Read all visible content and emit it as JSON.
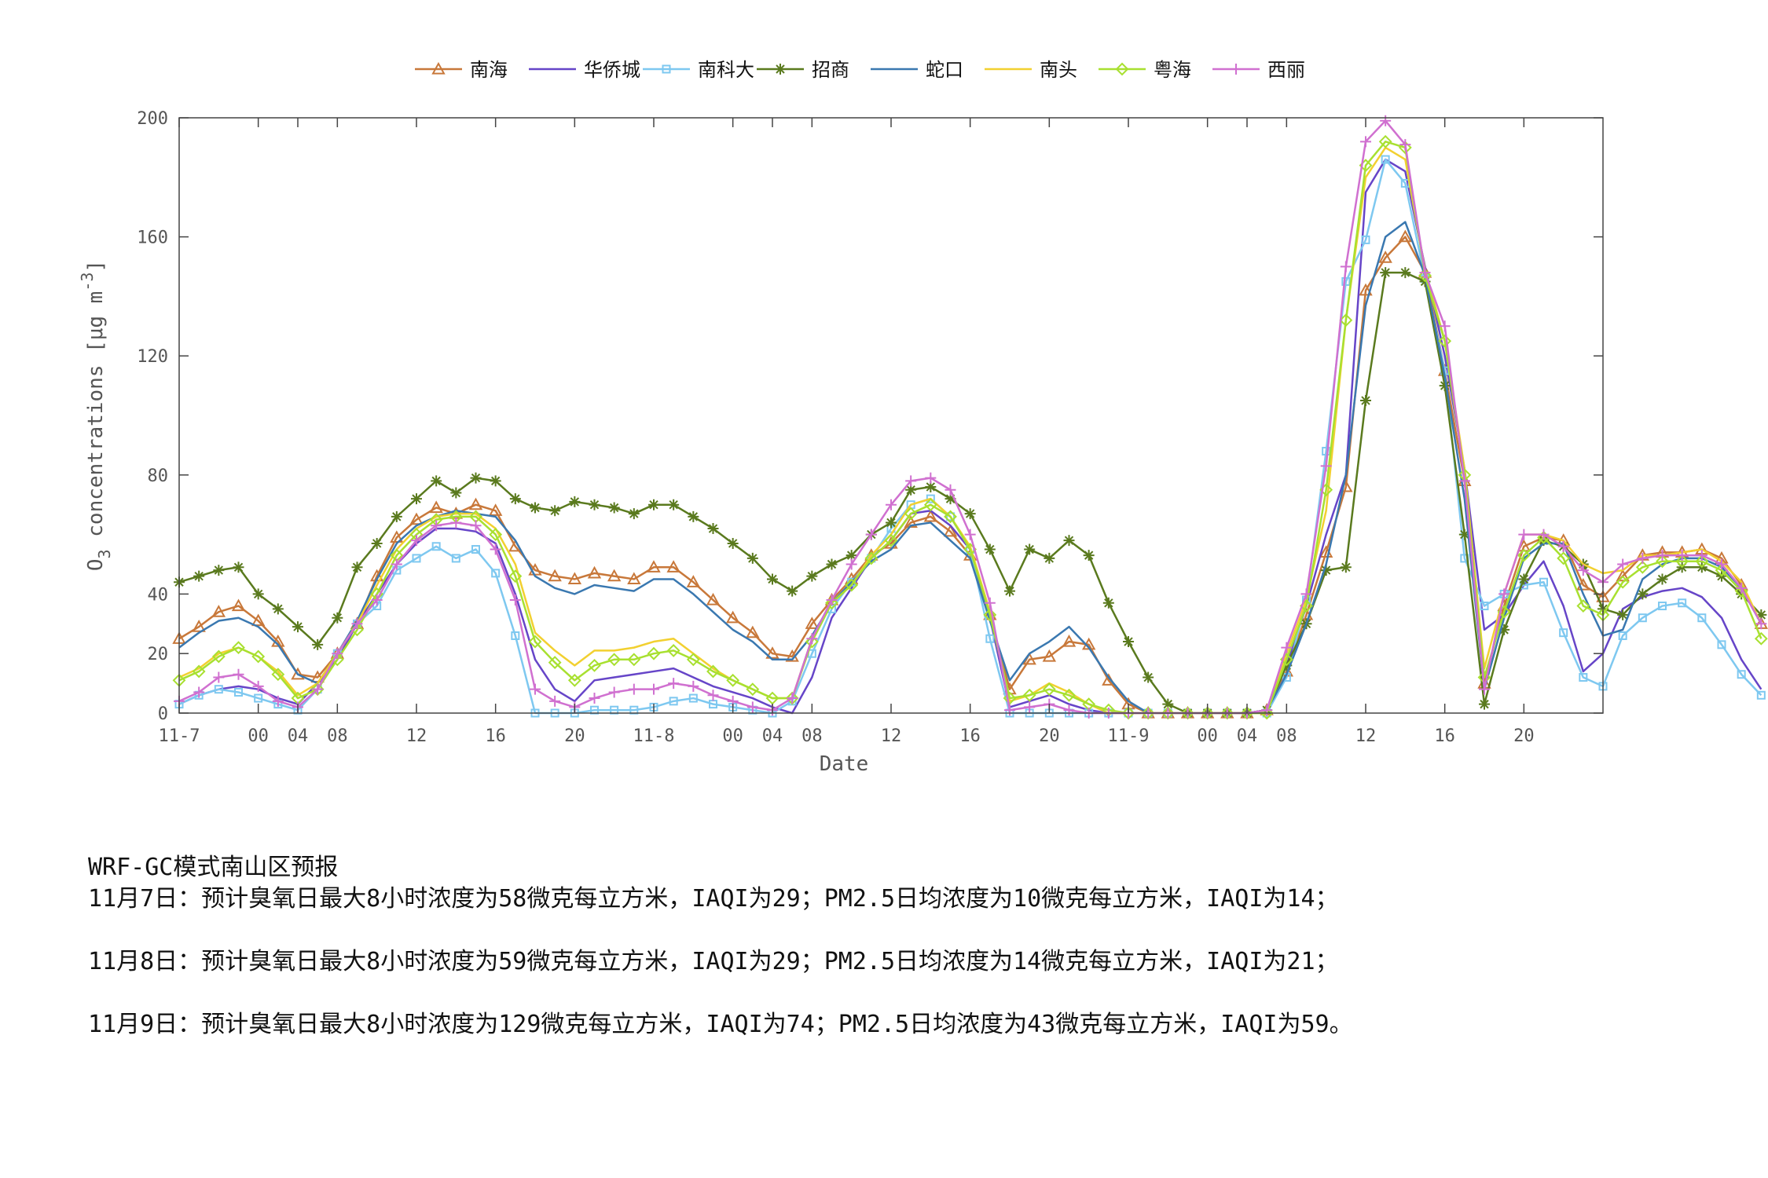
{
  "chart_data": {
    "type": "line",
    "xlabel": "Date",
    "ylabel_main": "O",
    "ylabel_sub": "3",
    "ylabel_units": "concentrations [μg m",
    "ylabel_sup": "-3",
    "ylabel_close": "]",
    "ylim": [
      0,
      200
    ],
    "xlim": [
      0,
      72
    ],
    "y_ticks": [
      0,
      20,
      40,
      80,
      120,
      160,
      200
    ],
    "x_ticks": [
      {
        "x": 0,
        "label": "11-7"
      },
      {
        "x": 4,
        "label": "00"
      },
      {
        "x": 6,
        "label": "04"
      },
      {
        "x": 8,
        "label": "08"
      },
      {
        "x": 12,
        "label": "12"
      },
      {
        "x": 16,
        "label": "16"
      },
      {
        "x": 20,
        "label": "20"
      },
      {
        "x": 24,
        "label": "11-8"
      },
      {
        "x": 28,
        "label": "00"
      },
      {
        "x": 30,
        "label": "04"
      },
      {
        "x": 32,
        "label": "08"
      },
      {
        "x": 36,
        "label": "12"
      },
      {
        "x": 40,
        "label": "16"
      },
      {
        "x": 44,
        "label": "20"
      },
      {
        "x": 48,
        "label": "11-9"
      },
      {
        "x": 52,
        "label": "00"
      },
      {
        "x": 54,
        "label": "04"
      },
      {
        "x": 56,
        "label": "08"
      },
      {
        "x": 60,
        "label": "12"
      },
      {
        "x": 64,
        "label": "16"
      },
      {
        "x": 68,
        "label": "20"
      }
    ],
    "grid": false,
    "legend_position": "top",
    "series": [
      {
        "name": "南海",
        "color": "#C8783A",
        "marker": "triangle",
        "values": [
          25,
          29,
          34,
          36,
          31,
          24,
          13,
          12,
          20,
          30,
          46,
          59,
          65,
          69,
          67,
          70,
          68,
          56,
          48,
          46,
          45,
          47,
          46,
          45,
          49,
          49,
          44,
          38,
          32,
          27,
          20,
          19,
          30,
          38,
          45,
          53,
          57,
          64,
          66,
          61,
          53,
          33,
          8,
          18,
          19,
          24,
          23,
          11,
          3,
          0,
          0,
          0,
          0,
          0,
          0,
          1,
          14,
          33,
          54,
          76,
          142,
          153,
          160,
          148,
          115,
          78,
          10,
          36,
          56,
          59,
          58,
          43,
          39,
          46,
          53,
          54,
          54,
          55,
          52,
          43,
          30
        ]
      },
      {
        "name": "华侨城",
        "color": "#6645C8",
        "marker": "none",
        "values": [
          3,
          6,
          8,
          9,
          8,
          5,
          3,
          10,
          18,
          30,
          40,
          50,
          57,
          62,
          62,
          61,
          57,
          40,
          18,
          8,
          4,
          11,
          12,
          13,
          14,
          15,
          12,
          9,
          7,
          5,
          2,
          0,
          12,
          32,
          42,
          52,
          58,
          67,
          68,
          63,
          55,
          32,
          2,
          4,
          6,
          3,
          1,
          0,
          0,
          0,
          0,
          0,
          0,
          0,
          0,
          1,
          16,
          36,
          60,
          80,
          175,
          186,
          182,
          150,
          120,
          82,
          28,
          33,
          43,
          51,
          36,
          14,
          20,
          35,
          39,
          41,
          42,
          39,
          32,
          18,
          8
        ]
      },
      {
        "name": "南科大",
        "color": "#7EC8F0",
        "marker": "square",
        "values": [
          3,
          6,
          8,
          7,
          5,
          3,
          1,
          8,
          20,
          30,
          36,
          48,
          52,
          56,
          52,
          55,
          47,
          26,
          0,
          0,
          0,
          1,
          1,
          1,
          2,
          4,
          5,
          3,
          2,
          1,
          0,
          4,
          20,
          35,
          44,
          52,
          62,
          70,
          72,
          66,
          55,
          25,
          0,
          0,
          0,
          0,
          0,
          0,
          0,
          0,
          0,
          0,
          0,
          0,
          0,
          0,
          12,
          38,
          88,
          145,
          159,
          186,
          178,
          146,
          115,
          52,
          36,
          40,
          43,
          44,
          27,
          12,
          9,
          26,
          32,
          36,
          37,
          32,
          23,
          13,
          6
        ]
      },
      {
        "name": "招商",
        "color": "#5A7A1E",
        "marker": "star",
        "values": [
          44,
          46,
          48,
          49,
          40,
          35,
          29,
          23,
          32,
          49,
          57,
          66,
          72,
          78,
          74,
          79,
          78,
          72,
          69,
          68,
          71,
          70,
          69,
          67,
          70,
          70,
          66,
          62,
          57,
          52,
          45,
          41,
          46,
          50,
          53,
          60,
          64,
          75,
          76,
          72,
          67,
          55,
          41,
          55,
          52,
          58,
          53,
          37,
          24,
          12,
          3,
          0,
          0,
          0,
          0,
          1,
          16,
          30,
          48,
          49,
          105,
          148,
          148,
          145,
          110,
          60,
          3,
          28,
          45,
          58,
          56,
          50,
          35,
          33,
          40,
          45,
          49,
          49,
          46,
          40,
          33
        ]
      },
      {
        "name": "蛇口",
        "color": "#3A78B0",
        "marker": "none",
        "values": [
          22,
          27,
          31,
          32,
          29,
          23,
          13,
          10,
          20,
          31,
          45,
          57,
          63,
          66,
          68,
          67,
          66,
          58,
          46,
          42,
          40,
          43,
          42,
          41,
          45,
          45,
          40,
          34,
          28,
          24,
          18,
          18,
          26,
          37,
          44,
          51,
          55,
          63,
          64,
          58,
          52,
          31,
          11,
          20,
          24,
          29,
          22,
          12,
          4,
          0,
          0,
          0,
          0,
          0,
          0,
          1,
          13,
          30,
          50,
          80,
          137,
          160,
          165,
          147,
          113,
          72,
          8,
          32,
          52,
          57,
          57,
          40,
          26,
          28,
          45,
          50,
          52,
          52,
          49,
          42,
          30
        ]
      },
      {
        "name": "南头",
        "color": "#F2D030",
        "marker": "none",
        "values": [
          12,
          15,
          20,
          22,
          19,
          14,
          6,
          10,
          20,
          30,
          43,
          55,
          62,
          66,
          67,
          67,
          62,
          50,
          27,
          21,
          16,
          21,
          21,
          22,
          24,
          25,
          20,
          15,
          11,
          8,
          5,
          5,
          25,
          37,
          43,
          53,
          60,
          70,
          72,
          66,
          56,
          34,
          4,
          6,
          10,
          7,
          3,
          0,
          0,
          0,
          0,
          0,
          0,
          0,
          0,
          0,
          20,
          38,
          68,
          132,
          180,
          190,
          186,
          149,
          125,
          82,
          15,
          40,
          60,
          60,
          58,
          50,
          47,
          48,
          53,
          53,
          54,
          55,
          51,
          44,
          30
        ]
      },
      {
        "name": "粤海",
        "color": "#A8E030",
        "marker": "diamond",
        "values": [
          11,
          14,
          19,
          22,
          19,
          13,
          5,
          8,
          18,
          28,
          40,
          53,
          60,
          65,
          66,
          66,
          60,
          46,
          24,
          17,
          11,
          16,
          18,
          18,
          20,
          21,
          18,
          14,
          11,
          8,
          5,
          5,
          24,
          37,
          43,
          52,
          58,
          67,
          70,
          66,
          55,
          33,
          5,
          6,
          8,
          6,
          3,
          1,
          0,
          0,
          0,
          0,
          0,
          0,
          0,
          0,
          18,
          36,
          75,
          132,
          184,
          192,
          190,
          147,
          125,
          80,
          12,
          34,
          53,
          59,
          52,
          36,
          33,
          44,
          49,
          51,
          51,
          51,
          48,
          41,
          25
        ]
      },
      {
        "name": "西丽",
        "color": "#D070D0",
        "marker": "plus",
        "values": [
          4,
          7,
          12,
          13,
          9,
          4,
          2,
          8,
          20,
          30,
          38,
          50,
          58,
          63,
          64,
          63,
          55,
          38,
          8,
          4,
          2,
          5,
          7,
          8,
          8,
          10,
          9,
          6,
          4,
          2,
          1,
          5,
          25,
          38,
          50,
          60,
          70,
          78,
          79,
          75,
          60,
          37,
          1,
          2,
          3,
          1,
          0,
          0,
          0,
          0,
          0,
          0,
          0,
          0,
          0,
          1,
          22,
          40,
          83,
          150,
          192,
          199,
          191,
          148,
          130,
          78,
          8,
          40,
          60,
          60,
          56,
          48,
          44,
          50,
          52,
          53,
          53,
          53,
          50,
          42,
          30
        ]
      }
    ]
  },
  "forecast": {
    "title": "WRF-GC模式南山区预报",
    "lines": [
      "11月7日：预计臭氧日最大8小时浓度为58微克每立方米，IAQI为29；PM2.5日均浓度为10微克每立方米，IAQI为14；",
      "11月8日：预计臭氧日最大8小时浓度为59微克每立方米，IAQI为29；PM2.5日均浓度为14微克每立方米，IAQI为21；",
      "11月9日：预计臭氧日最大8小时浓度为129微克每立方米，IAQI为74；PM2.5日均浓度为43微克每立方米，IAQI为59。"
    ]
  }
}
